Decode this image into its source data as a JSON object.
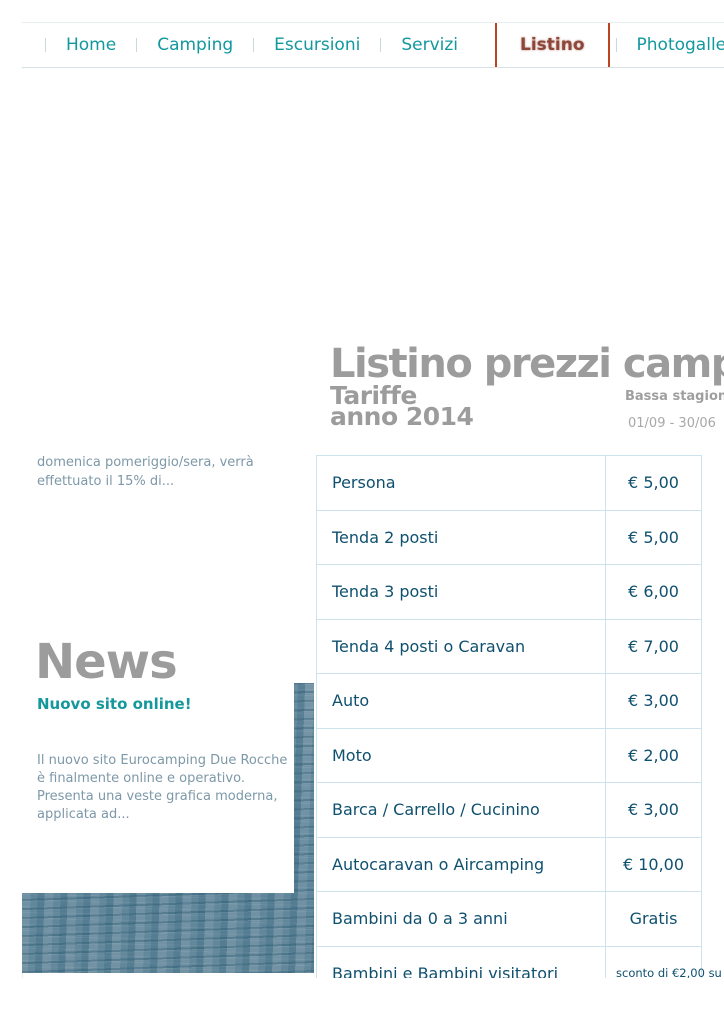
{
  "nav": {
    "items": [
      {
        "label": "Home",
        "active": false
      },
      {
        "label": "Camping",
        "active": false
      },
      {
        "label": "Escursioni",
        "active": false
      },
      {
        "label": "Servizi",
        "active": false
      },
      {
        "label": "Listino",
        "active": true
      },
      {
        "label": "Photogallery",
        "active": false
      }
    ]
  },
  "main": {
    "page_title": "Listino prezzi campeggio",
    "subtitle_line1": "Tariffe",
    "subtitle_line2": "anno 2014",
    "season_header": {
      "title": "Bassa stagione",
      "dates": "01/09 - 30/06"
    },
    "price_table": {
      "rows": [
        {
          "label": "Persona",
          "price": "€ 5,00"
        },
        {
          "label": "Tenda 2 posti",
          "price": "€ 5,00"
        },
        {
          "label": "Tenda 3 posti",
          "price": "€ 6,00"
        },
        {
          "label": "Tenda 4 posti o Caravan",
          "price": "€ 7,00"
        },
        {
          "label": "Auto",
          "price": "€ 3,00"
        },
        {
          "label": "Moto",
          "price": "€ 2,00"
        },
        {
          "label": "Barca / Carrello / Cucinino",
          "price": "€ 3,00"
        },
        {
          "label": "Autocaravan o Aircamping",
          "price": "€ 10,00"
        },
        {
          "label": "Bambini da 0 a 3 anni",
          "price": "Gratis"
        },
        {
          "label": "Bambini e Bambini visitatori",
          "price": "sconto di €2,00 su"
        }
      ]
    }
  },
  "sidebar": {
    "clipped_news_text": "domenica pomeriggio/sera, verrà effettuato il 15% di...",
    "news_title": "News",
    "news_item": {
      "headline": "Nuovo sito online!",
      "body": "Il nuovo sito Eurocamping Due Rocche è finalmente online e operativo. Presenta una veste grafica moderna, applicata ad..."
    }
  },
  "colors": {
    "nav_teal": "#12989e",
    "nav_active_text": "#8e4638",
    "nav_active_border": "#bc441f",
    "title_gray": "#9c9c9c",
    "table_text_navy": "#0f506f",
    "table_border_blue": "#cfe3ee",
    "sidebar_text": "#7d98a8",
    "water_blue": "#6e90a3"
  }
}
